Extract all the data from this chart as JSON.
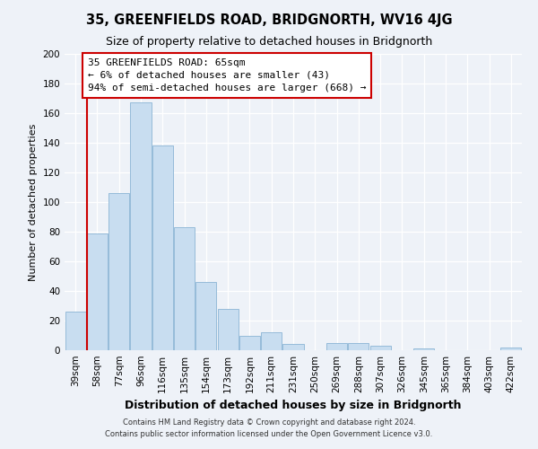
{
  "title": "35, GREENFIELDS ROAD, BRIDGNORTH, WV16 4JG",
  "subtitle": "Size of property relative to detached houses in Bridgnorth",
  "xlabel": "Distribution of detached houses by size in Bridgnorth",
  "ylabel": "Number of detached properties",
  "bin_labels": [
    "39sqm",
    "58sqm",
    "77sqm",
    "96sqm",
    "116sqm",
    "135sqm",
    "154sqm",
    "173sqm",
    "192sqm",
    "211sqm",
    "231sqm",
    "250sqm",
    "269sqm",
    "288sqm",
    "307sqm",
    "326sqm",
    "345sqm",
    "365sqm",
    "384sqm",
    "403sqm",
    "422sqm"
  ],
  "bar_heights": [
    26,
    79,
    106,
    167,
    138,
    83,
    46,
    28,
    10,
    12,
    4,
    0,
    5,
    5,
    3,
    0,
    1,
    0,
    0,
    0,
    2
  ],
  "bar_color": "#c8ddf0",
  "bar_edge_color": "#8ab4d4",
  "vline_color": "#cc0000",
  "annotation_text": "35 GREENFIELDS ROAD: 65sqm\n← 6% of detached houses are smaller (43)\n94% of semi-detached houses are larger (668) →",
  "annotation_box_color": "#ffffff",
  "annotation_box_edge": "#cc0000",
  "ylim": [
    0,
    200
  ],
  "yticks": [
    0,
    20,
    40,
    60,
    80,
    100,
    120,
    140,
    160,
    180,
    200
  ],
  "footer1": "Contains HM Land Registry data © Crown copyright and database right 2024.",
  "footer2": "Contains public sector information licensed under the Open Government Licence v3.0.",
  "bg_color": "#eef2f8",
  "plot_bg_color": "#eef2f8",
  "grid_color": "#ffffff",
  "title_fontsize": 10.5,
  "subtitle_fontsize": 9,
  "xlabel_fontsize": 9,
  "ylabel_fontsize": 8,
  "tick_fontsize": 7.5,
  "ann_fontsize": 8
}
